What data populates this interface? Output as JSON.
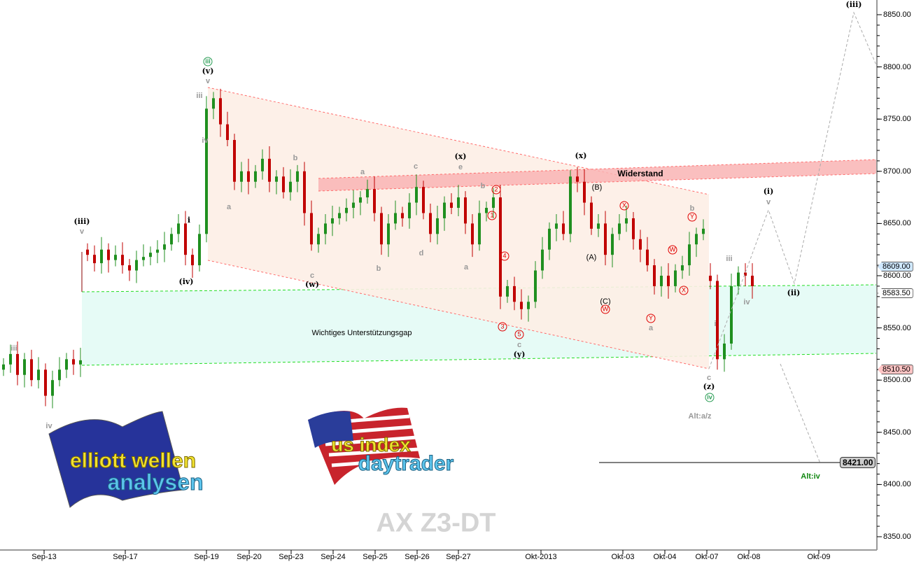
{
  "chart_data": {
    "type": "candlestick",
    "title": "AX Z3-DT",
    "ylim": [
      8350,
      8850
    ],
    "y_ticks": [
      "8350.00",
      "8400.00",
      "8450.00",
      "8500.00",
      "8550.00",
      "8600.00",
      "8650.00",
      "8700.00",
      "8750.00",
      "8800.00",
      "8850.00"
    ],
    "x_ticks": [
      "Sep-13",
      "Sep-17",
      "Sep-19",
      "Sep-20",
      "Sep-23",
      "Sep-24",
      "Sep-25",
      "Sep-26",
      "Sep-27",
      "Okt-2013",
      "Okt-03",
      "Okt-04",
      "Okt-07",
      "Okt-08",
      "Okt-09"
    ],
    "grid": false,
    "colors": {
      "up": "#1f8f1f",
      "down": "#c00000",
      "channel": "#ff6b6b",
      "gap_line": "#22dd22",
      "projection": "#aaaaaa"
    },
    "closes": [
      8515,
      8525,
      8505,
      8520,
      8500,
      8510,
      8485,
      8500,
      8510,
      8520,
      8515,
      8519,
      8620,
      8612,
      8625,
      8615,
      8620,
      8610,
      8605,
      8615,
      8618,
      8622,
      8625,
      8630,
      8640,
      8650,
      8620,
      8610,
      8640,
      8760,
      8770,
      8745,
      8730,
      8690,
      8700,
      8690,
      8700,
      8712,
      8690,
      8695,
      8680,
      8690,
      8700,
      8660,
      8630,
      8640,
      8650,
      8655,
      8660,
      8665,
      8670,
      8675,
      8683,
      8660,
      8630,
      8650,
      8660,
      8655,
      8670,
      8685,
      8660,
      8640,
      8655,
      8670,
      8665,
      8675,
      8650,
      8630,
      8660,
      8665,
      8675,
      8580,
      8590,
      8575,
      8568,
      8575,
      8605,
      8625,
      8645,
      8650,
      8640,
      8695,
      8690,
      8670,
      8645,
      8650,
      8620,
      8640,
      8650,
      8655,
      8635,
      8625,
      8610,
      8590,
      8600,
      8590,
      8605,
      8610,
      8630,
      8640,
      8645,
      8595,
      8520,
      8535,
      8590,
      8603,
      8600,
      8590
    ],
    "price_labels": [
      {
        "value": "8609.00",
        "style": "last",
        "color": "#cfe8ff"
      },
      {
        "value": "8583.50",
        "style": "level",
        "color": "#ffffff"
      },
      {
        "value": "8510.50",
        "style": "low",
        "color": "#ffc4c4"
      },
      {
        "value": "8421.00",
        "style": "target",
        "color": "#cccccc"
      }
    ],
    "zone_labels": {
      "resistance": "Widerstand",
      "support_gap": "Wichtiges Unterstützungsgap"
    },
    "annotations": [
      {
        "text": "iii",
        "c": "gry"
      },
      {
        "text": "iv",
        "c": "gry"
      },
      {
        "text": "(iii)",
        "c": "blk"
      },
      {
        "text": "v",
        "c": "gry"
      },
      {
        "text": "(iv)",
        "c": "blk"
      },
      {
        "text": "i",
        "c": "blk"
      },
      {
        "text": "iii",
        "c": "green-circ"
      },
      {
        "text": "(v)",
        "c": "blk"
      },
      {
        "text": "v",
        "c": "gry"
      },
      {
        "text": "iii",
        "c": "gry"
      },
      {
        "text": "iv",
        "c": "gry"
      },
      {
        "text": "a",
        "c": "gry"
      },
      {
        "text": "b",
        "c": "gry"
      },
      {
        "text": "c",
        "c": "gry"
      },
      {
        "text": "(w)",
        "c": "blk"
      },
      {
        "text": "a",
        "c": "gry"
      },
      {
        "text": "b",
        "c": "gry"
      },
      {
        "text": "c",
        "c": "gry"
      },
      {
        "text": "d",
        "c": "gry"
      },
      {
        "text": "e",
        "c": "gry"
      },
      {
        "text": "(x)",
        "c": "blk"
      },
      {
        "text": "a",
        "c": "gry"
      },
      {
        "text": "b",
        "c": "gry"
      },
      {
        "text": "2",
        "c": "red-circ"
      },
      {
        "text": "1",
        "c": "red-circ"
      },
      {
        "text": "4",
        "c": "red-circ"
      },
      {
        "text": "3",
        "c": "red-circ"
      },
      {
        "text": "5",
        "c": "red-circ"
      },
      {
        "text": "c",
        "c": "gry"
      },
      {
        "text": "(y)",
        "c": "blk"
      },
      {
        "text": "(x)",
        "c": "blk"
      },
      {
        "text": "(B)",
        "c": "plain"
      },
      {
        "text": "(A)",
        "c": "plain"
      },
      {
        "text": "(C)",
        "c": "plain"
      },
      {
        "text": "W",
        "c": "red-circ"
      },
      {
        "text": "X",
        "c": "red-circ"
      },
      {
        "text": "W",
        "c": "red-circ"
      },
      {
        "text": "Y",
        "c": "red-circ"
      },
      {
        "text": "X",
        "c": "red-circ"
      },
      {
        "text": "Y",
        "c": "red-circ"
      },
      {
        "text": "b",
        "c": "gry"
      },
      {
        "text": "a",
        "c": "gry"
      },
      {
        "text": "iii",
        "c": "gry"
      },
      {
        "text": "iv",
        "c": "gry"
      },
      {
        "text": "i",
        "c": "gry"
      },
      {
        "text": "c",
        "c": "gry"
      },
      {
        "text": "(z)",
        "c": "blk"
      },
      {
        "text": "iv",
        "c": "green-circ"
      },
      {
        "text": "Alt:a/z",
        "c": "gry"
      },
      {
        "text": "(i)",
        "c": "blk"
      },
      {
        "text": "v",
        "c": "gry"
      },
      {
        "text": "(ii)",
        "c": "blk"
      },
      {
        "text": "(iii)",
        "c": "blk"
      },
      {
        "text": "Alt:iv",
        "c": "green"
      }
    ]
  },
  "logos": {
    "left": {
      "line1": "elliott wellen",
      "line2": "analysen"
    },
    "right": {
      "line1": "us index",
      "line2": "daytrader"
    }
  }
}
